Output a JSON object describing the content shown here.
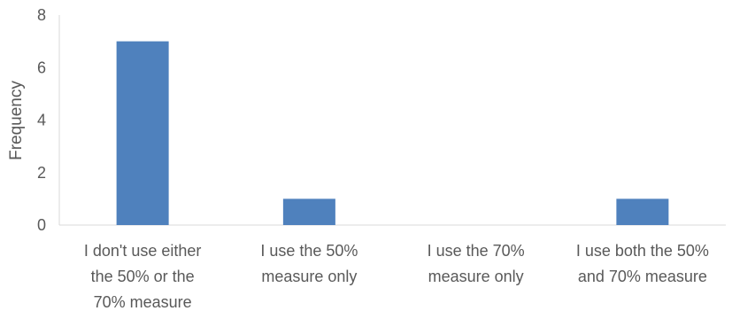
{
  "chart_data": {
    "type": "bar",
    "title": "",
    "xlabel": "",
    "ylabel": "Frequency",
    "ylim": [
      0,
      8
    ],
    "yticks": [
      "0",
      "2",
      "4",
      "6",
      "8"
    ],
    "grid": false,
    "legend": "none",
    "bar_color": "#4f81bd",
    "categories": [
      [
        "I don't use either",
        "the 50% or the",
        "70% measure"
      ],
      [
        "I use the 50%",
        "measure only"
      ],
      [
        "I use the 70%",
        "measure only"
      ],
      [
        "I use both the 50%",
        "and 70% measure"
      ]
    ],
    "values": [
      7,
      1,
      0,
      1
    ]
  }
}
